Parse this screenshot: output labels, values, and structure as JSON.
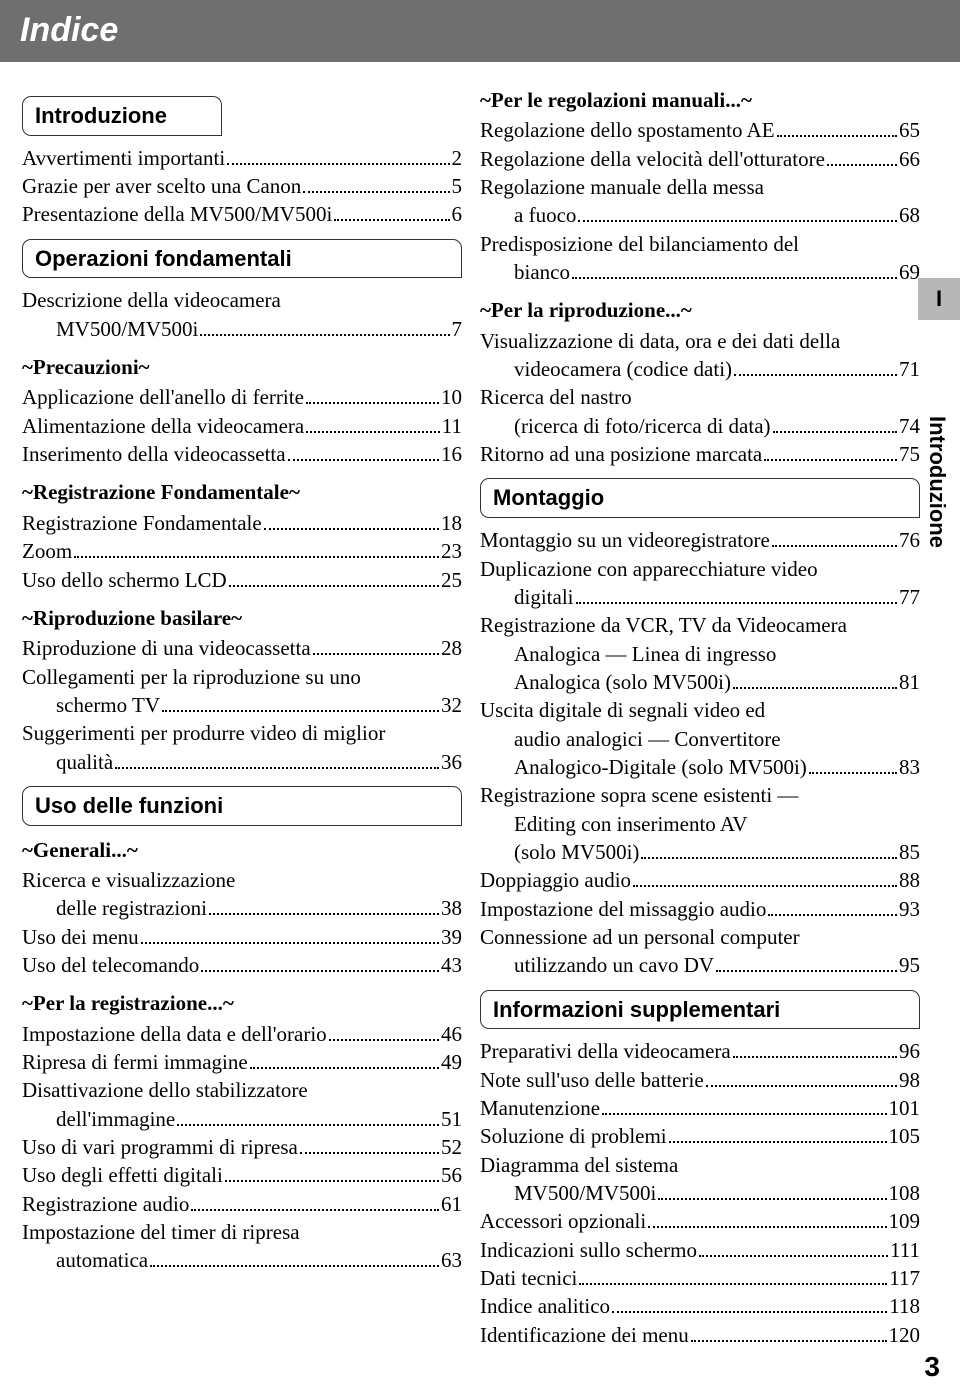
{
  "colors": {
    "titlebar_bg": "#6f6f6f",
    "titlebar_text": "#ffffff",
    "sidetab_bg": "#b7b7b7",
    "page_bg": "#ffffff",
    "text": "#000000"
  },
  "title": "Indice",
  "side_tab": "I",
  "side_label": "Introduzione",
  "page_number": "3",
  "left": {
    "s1": {
      "heading": "Introduzione",
      "items": [
        {
          "label": "Avvertimenti importanti",
          "pg": "2"
        },
        {
          "label": "Grazie per aver scelto una Canon",
          "pg": "5"
        },
        {
          "label": "Presentazione della MV500/MV500i",
          "pg": "6"
        }
      ]
    },
    "s2": {
      "heading": "Operazioni fondamentali",
      "group0": [
        {
          "label": "Descrizione della videocamera"
        },
        {
          "label": "MV500/MV500i",
          "pg": "7",
          "indent": true
        }
      ],
      "sub1": {
        "title": "~Precauzioni~",
        "items": [
          {
            "label": "Applicazione dell'anello di ferrite",
            "pg": "10"
          },
          {
            "label": "Alimentazione della videocamera",
            "pg": "11"
          },
          {
            "label": "Inserimento della videocassetta",
            "pg": "16"
          }
        ]
      },
      "sub2": {
        "title": "~Registrazione Fondamentale~",
        "items": [
          {
            "label": "Registrazione Fondamentale",
            "pg": "18"
          },
          {
            "label": "Zoom",
            "pg": "23"
          },
          {
            "label": "Uso dello schermo LCD",
            "pg": "25"
          }
        ]
      },
      "sub3": {
        "title": "~Riproduzione basilare~",
        "items": [
          {
            "label": "Riproduzione di una videocassetta",
            "pg": "28"
          },
          {
            "label": "Collegamenti per la riproduzione su uno"
          },
          {
            "label": "schermo TV",
            "pg": "32",
            "indent": true
          },
          {
            "label": "Suggerimenti per produrre video di miglior"
          },
          {
            "label": "qualità",
            "pg": "36",
            "indent": true
          }
        ]
      }
    },
    "s3": {
      "heading": "Uso delle funzioni",
      "sub1": {
        "title": "~Generali...~",
        "items": [
          {
            "label": "Ricerca e visualizzazione"
          },
          {
            "label": "delle registrazioni",
            "pg": "38",
            "indent": true
          },
          {
            "label": "Uso dei menu",
            "pg": "39"
          },
          {
            "label": "Uso del telecomando",
            "pg": "43"
          }
        ]
      },
      "sub2": {
        "title": "~Per la registrazione...~",
        "items": [
          {
            "label": "Impostazione della data e dell'orario",
            "pg": "46"
          },
          {
            "label": "Ripresa di fermi immagine",
            "pg": "49"
          },
          {
            "label": "Disattivazione dello stabilizzatore"
          },
          {
            "label": "dell'immagine",
            "pg": "51",
            "indent": true
          },
          {
            "label": "Uso di vari programmi di ripresa",
            "pg": "52"
          },
          {
            "label": "Uso degli effetti digitali",
            "pg": "56"
          },
          {
            "label": "Registrazione audio",
            "pg": "61"
          },
          {
            "label": "Impostazione del timer di ripresa"
          },
          {
            "label": "automatica",
            "pg": "63",
            "indent": true
          }
        ]
      }
    }
  },
  "right": {
    "sub1": {
      "title": "~Per le regolazioni manuali...~",
      "items": [
        {
          "label": "Regolazione dello spostamento AE",
          "pg": "65"
        },
        {
          "label": "Regolazione della velocità dell'otturatore",
          "pg": "66"
        },
        {
          "label": "Regolazione manuale della messa"
        },
        {
          "label": "a fuoco",
          "pg": "68",
          "indent": true
        },
        {
          "label": "Predisposizione del bilanciamento del"
        },
        {
          "label": "bianco",
          "pg": "69",
          "indent": true
        }
      ]
    },
    "sub2": {
      "title": "~Per la riproduzione...~",
      "items": [
        {
          "label": "Visualizzazione di data, ora e dei dati della"
        },
        {
          "label": "videocamera (codice dati)",
          "pg": "71",
          "indent": true
        },
        {
          "label": "Ricerca del nastro"
        },
        {
          "label": "(ricerca di foto/ricerca di data)",
          "pg": "74",
          "indent": true
        },
        {
          "label": "Ritorno ad una posizione marcata",
          "pg": "75"
        }
      ]
    },
    "s4": {
      "heading": "Montaggio",
      "items": [
        {
          "label": "Montaggio su un videoregistratore",
          "pg": "76"
        },
        {
          "label": "Duplicazione con apparecchiature video"
        },
        {
          "label": "digitali",
          "pg": "77",
          "indent": true
        },
        {
          "label": "Registrazione da VCR, TV da Videocamera"
        },
        {
          "label": "Analogica — Linea di ingresso",
          "indent": true
        },
        {
          "label": "Analogica (solo MV500i)",
          "pg": "81",
          "indent": true
        },
        {
          "label": "Uscita digitale di segnali video ed"
        },
        {
          "label": "audio analogici — Convertitore",
          "indent": true
        },
        {
          "label": "Analogico-Digitale (solo MV500i)",
          "pg": "83",
          "indent": true
        },
        {
          "label": "Registrazione sopra scene esistenti —"
        },
        {
          "label": "Editing con inserimento AV",
          "indent": true
        },
        {
          "label": "(solo MV500i)",
          "pg": "85",
          "indent": true
        },
        {
          "label": "Doppiaggio audio",
          "pg": "88"
        },
        {
          "label": "Impostazione del missaggio audio",
          "pg": "93"
        },
        {
          "label": "Connessione ad un personal computer"
        },
        {
          "label": "utilizzando un cavo DV",
          "pg": "95",
          "indent": true
        }
      ]
    },
    "s5": {
      "heading": "Informazioni supplementari",
      "items": [
        {
          "label": "Preparativi della videocamera",
          "pg": "96"
        },
        {
          "label": "Note sull'uso delle batterie",
          "pg": "98"
        },
        {
          "label": "Manutenzione",
          "pg": "101"
        },
        {
          "label": "Soluzione di problemi",
          "pg": "105"
        },
        {
          "label": "Diagramma del sistema"
        },
        {
          "label": "MV500/MV500i",
          "pg": "108",
          "indent": true
        },
        {
          "label": "Accessori opzionali",
          "pg": "109"
        },
        {
          "label": "Indicazioni sullo schermo",
          "pg": "111"
        },
        {
          "label": "Dati tecnici",
          "pg": "117"
        },
        {
          "label": "Indice analitico",
          "pg": "118"
        },
        {
          "label": "Identificazione dei menu",
          "pg": "120"
        }
      ]
    }
  }
}
